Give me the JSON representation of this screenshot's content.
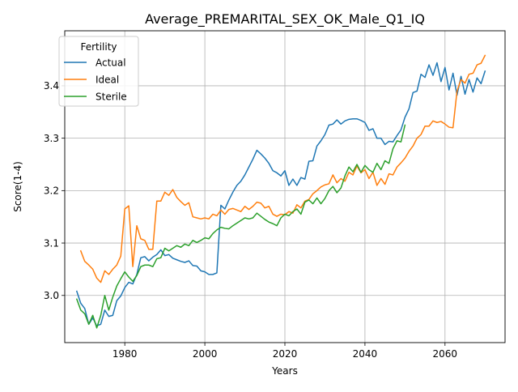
{
  "chart_data": {
    "type": "line",
    "title": "Average_PREMARITAL_SEX_OK_Male_Q1_IQ",
    "xlabel": "Years",
    "ylabel": "Score(1-4)",
    "xlim": [
      1965,
      2075
    ],
    "ylim": [
      2.91,
      3.505
    ],
    "xticks": [
      1980,
      2000,
      2020,
      2040,
      2060
    ],
    "yticks": [
      3.0,
      3.1,
      3.2,
      3.3,
      3.4
    ],
    "ytick_labels": [
      "3.0",
      "3.1",
      "3.2",
      "3.3",
      "3.4"
    ],
    "grid": true,
    "legend": {
      "title": "Fertility",
      "placement": "top-left"
    },
    "series": [
      {
        "name": "Actual",
        "color": "#1f77b4",
        "x": [
          1968,
          1969,
          1970,
          1971,
          1972,
          1973,
          1974,
          1975,
          1976,
          1977,
          1978,
          1979,
          1980,
          1981,
          1982,
          1983,
          1984,
          1985,
          1986,
          1987,
          1988,
          1989,
          1990,
          1991,
          1992,
          1993,
          1994,
          1995,
          1996,
          1997,
          1998,
          1999,
          2000,
          2001,
          2002,
          2003,
          2004,
          2005,
          2006,
          2007,
          2008,
          2009,
          2010,
          2011,
          2012,
          2013,
          2014,
          2015,
          2016,
          2017,
          2018,
          2019,
          2020,
          2021,
          2022,
          2023,
          2024,
          2025,
          2026,
          2027,
          2028,
          2029,
          2030,
          2031,
          2032,
          2033,
          2034,
          2035,
          2036,
          2037,
          2038,
          2039,
          2040,
          2041,
          2042,
          2043,
          2044,
          2045,
          2046,
          2047,
          2048,
          2049,
          2050,
          2051,
          2052,
          2053,
          2054,
          2055,
          2056,
          2057,
          2058,
          2059,
          2060,
          2061,
          2062,
          2063,
          2064,
          2065,
          2066,
          2067,
          2068,
          2069,
          2070
        ],
        "values": [
          3.008,
          2.985,
          2.975,
          2.945,
          2.957,
          2.942,
          2.945,
          2.972,
          2.96,
          2.962,
          2.99,
          2.999,
          3.015,
          3.025,
          3.022,
          3.04,
          3.072,
          3.074,
          3.066,
          3.073,
          3.078,
          3.087,
          3.076,
          3.078,
          3.071,
          3.068,
          3.065,
          3.063,
          3.066,
          3.057,
          3.056,
          3.047,
          3.045,
          3.04,
          3.04,
          3.043,
          3.172,
          3.165,
          3.182,
          3.197,
          3.21,
          3.218,
          3.23,
          3.245,
          3.26,
          3.277,
          3.27,
          3.262,
          3.252,
          3.238,
          3.234,
          3.228,
          3.238,
          3.21,
          3.222,
          3.21,
          3.225,
          3.222,
          3.256,
          3.257,
          3.285,
          3.295,
          3.307,
          3.325,
          3.327,
          3.335,
          3.327,
          3.333,
          3.336,
          3.337,
          3.337,
          3.334,
          3.33,
          3.315,
          3.318,
          3.3,
          3.3,
          3.288,
          3.294,
          3.293,
          3.305,
          3.316,
          3.34,
          3.356,
          3.387,
          3.39,
          3.422,
          3.416,
          3.44,
          3.42,
          3.444,
          3.408,
          3.435,
          3.392,
          3.424,
          3.382,
          3.418,
          3.384,
          3.412,
          3.388,
          3.415,
          3.404,
          3.428
        ]
      },
      {
        "name": "Ideal",
        "color": "#ff7f0e",
        "x": [
          1969,
          1970,
          1971,
          1972,
          1973,
          1974,
          1975,
          1976,
          1977,
          1978,
          1979,
          1980,
          1981,
          1982,
          1983,
          1984,
          1985,
          1986,
          1987,
          1988,
          1989,
          1990,
          1991,
          1992,
          1993,
          1994,
          1995,
          1996,
          1997,
          1998,
          1999,
          2000,
          2001,
          2002,
          2003,
          2004,
          2005,
          2006,
          2007,
          2008,
          2009,
          2010,
          2011,
          2012,
          2013,
          2014,
          2015,
          2016,
          2017,
          2018,
          2019,
          2020,
          2021,
          2022,
          2023,
          2024,
          2025,
          2026,
          2027,
          2028,
          2029,
          2030,
          2031,
          2032,
          2033,
          2034,
          2035,
          2036,
          2037,
          2038,
          2039,
          2040,
          2041,
          2042,
          2043,
          2044,
          2045,
          2046,
          2047,
          2048,
          2049,
          2050,
          2051,
          2052,
          2053,
          2054,
          2055,
          2056,
          2057,
          2058,
          2059,
          2060,
          2061,
          2062,
          2063,
          2064,
          2065,
          2066,
          2067,
          2068,
          2069,
          2070
        ],
        "values": [
          3.085,
          3.065,
          3.058,
          3.05,
          3.033,
          3.025,
          3.047,
          3.04,
          3.05,
          3.058,
          3.075,
          3.165,
          3.171,
          3.055,
          3.133,
          3.108,
          3.105,
          3.088,
          3.088,
          3.18,
          3.18,
          3.197,
          3.191,
          3.202,
          3.187,
          3.179,
          3.172,
          3.177,
          3.15,
          3.148,
          3.146,
          3.148,
          3.146,
          3.155,
          3.152,
          3.163,
          3.155,
          3.164,
          3.166,
          3.163,
          3.16,
          3.17,
          3.164,
          3.17,
          3.178,
          3.176,
          3.167,
          3.17,
          3.155,
          3.151,
          3.155,
          3.154,
          3.16,
          3.157,
          3.173,
          3.167,
          3.18,
          3.183,
          3.194,
          3.2,
          3.207,
          3.211,
          3.213,
          3.23,
          3.215,
          3.223,
          3.218,
          3.235,
          3.23,
          3.247,
          3.234,
          3.24,
          3.223,
          3.235,
          3.21,
          3.223,
          3.212,
          3.232,
          3.23,
          3.245,
          3.253,
          3.262,
          3.275,
          3.285,
          3.3,
          3.307,
          3.323,
          3.323,
          3.333,
          3.33,
          3.332,
          3.327,
          3.321,
          3.32,
          3.39,
          3.412,
          3.405,
          3.422,
          3.424,
          3.44,
          3.443,
          3.458
        ]
      },
      {
        "name": "Sterile",
        "color": "#2ca02c",
        "x": [
          1968,
          1969,
          1970,
          1971,
          1972,
          1973,
          1974,
          1975,
          1976,
          1977,
          1978,
          1979,
          1980,
          1981,
          1982,
          1983,
          1984,
          1985,
          1986,
          1987,
          1988,
          1989,
          1990,
          1991,
          1992,
          1993,
          1994,
          1995,
          1996,
          1997,
          1998,
          1999,
          2000,
          2001,
          2002,
          2003,
          2004,
          2005,
          2006,
          2007,
          2008,
          2009,
          2010,
          2011,
          2012,
          2013,
          2014,
          2015,
          2016,
          2017,
          2018,
          2019,
          2020,
          2021,
          2022,
          2023,
          2024,
          2025,
          2026,
          2027,
          2028,
          2029,
          2030,
          2031,
          2032,
          2033,
          2034,
          2035,
          2036,
          2037,
          2038,
          2039,
          2040,
          2041,
          2042,
          2043,
          2044,
          2045,
          2046,
          2047,
          2048,
          2049,
          2050
        ],
        "values": [
          2.993,
          2.972,
          2.965,
          2.945,
          2.962,
          2.938,
          2.962,
          3.0,
          2.972,
          2.997,
          3.018,
          3.032,
          3.045,
          3.035,
          3.027,
          3.038,
          3.055,
          3.058,
          3.058,
          3.055,
          3.07,
          3.072,
          3.09,
          3.085,
          3.09,
          3.095,
          3.092,
          3.098,
          3.095,
          3.105,
          3.101,
          3.105,
          3.11,
          3.108,
          3.118,
          3.125,
          3.13,
          3.128,
          3.127,
          3.133,
          3.138,
          3.143,
          3.148,
          3.146,
          3.148,
          3.157,
          3.151,
          3.145,
          3.14,
          3.137,
          3.133,
          3.148,
          3.155,
          3.152,
          3.16,
          3.165,
          3.155,
          3.178,
          3.182,
          3.175,
          3.186,
          3.175,
          3.185,
          3.2,
          3.208,
          3.196,
          3.205,
          3.228,
          3.245,
          3.236,
          3.25,
          3.235,
          3.248,
          3.24,
          3.235,
          3.252,
          3.24,
          3.257,
          3.252,
          3.28,
          3.295,
          3.293,
          3.325
        ]
      }
    ]
  }
}
